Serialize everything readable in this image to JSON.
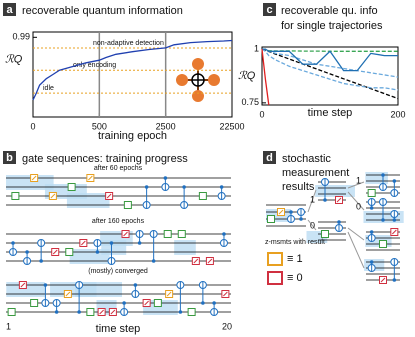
{
  "chart_data": [
    {
      "type": "line",
      "label": "a",
      "title": [
        "recoverable quantum information"
      ],
      "ylabel": "ℛQ",
      "xlabel": "training epoch",
      "xscale": "piecewise",
      "xlim": [
        0,
        22500
      ],
      "xticks": [
        0,
        500,
        2500,
        22500
      ],
      "ylim": [
        0.84,
        1.0
      ],
      "yticks": [
        0.99
      ],
      "x": [
        0,
        25,
        50,
        100,
        150,
        200,
        300,
        400,
        500,
        700,
        1000,
        1500,
        2000,
        2500,
        5000,
        10000,
        15000,
        20000,
        22500
      ],
      "series": [
        {
          "color": "#2040b0",
          "style": "solid",
          "values": [
            0.872,
            0.885,
            0.9,
            0.912,
            0.92,
            0.928,
            0.935,
            0.942,
            0.947,
            0.952,
            0.958,
            0.963,
            0.967,
            0.97,
            0.976,
            0.98,
            0.982,
            0.983,
            0.984
          ]
        }
      ],
      "reference_lines": [
        {
          "name": "non-adaptive detection",
          "value": 0.97
        },
        {
          "name": "only encoding",
          "value": 0.928
        },
        {
          "name": "idle",
          "value": 0.885
        }
      ],
      "reference_color": "#e8a020"
    },
    {
      "type": "line",
      "label": "c",
      "title": [
        "recoverable qu. info",
        "for single trajectories"
      ],
      "ylabel": "ℛQ",
      "xlabel": "time step",
      "xlim": [
        0,
        200
      ],
      "xticks": [
        0,
        200
      ],
      "ylim": [
        0.74,
        1.01
      ],
      "yticks": [
        0.75,
        1
      ],
      "x": [
        0,
        5,
        10,
        20,
        40,
        60,
        80,
        100,
        120,
        140,
        160,
        180,
        200
      ],
      "series": [
        {
          "color": "#3aa655",
          "style": "dashed",
          "values": [
            1,
            0.995,
            0.993,
            0.992,
            0.992,
            0.991,
            0.991,
            0.99,
            0.99,
            0.99,
            0.99,
            0.99,
            0.99
          ]
        },
        {
          "color": "#000000",
          "style": "dashed",
          "values": [
            1,
            0.994,
            0.989,
            0.977,
            0.954,
            0.931,
            0.908,
            0.885,
            0.862,
            0.839,
            0.816,
            0.793,
            0.77
          ]
        },
        {
          "color": "#6aa9dd",
          "style": "dashed",
          "values": [
            1,
            0.99,
            0.97,
            0.95,
            0.92,
            0.9,
            0.88,
            0.86,
            0.84,
            0.83,
            0.82,
            0.82,
            0.81
          ]
        },
        {
          "color": "#6aa9dd",
          "style": "dashed",
          "values": [
            1,
            1,
            0.99,
            0.98,
            0.97,
            0.95,
            0.93,
            0.92,
            0.91,
            0.9,
            0.89,
            0.88,
            0.87
          ]
        },
        {
          "color": "#1f6fb2",
          "style": "solid",
          "values": [
            1,
            1,
            0.99,
            0.99,
            0.99,
            0.93,
            0.93,
            0.99,
            0.9,
            0.9,
            0.98,
            0.97,
            0.97
          ]
        },
        {
          "color": "#e02020",
          "style": "solid",
          "values": [
            1,
            0.86,
            0.74,
            null,
            null,
            null,
            null,
            null,
            null,
            null,
            null,
            null,
            null
          ]
        }
      ]
    }
  ],
  "panel_b": {
    "label": "b",
    "title": "gate sequences: training progress",
    "captions": [
      "after 60 epochs",
      "after 160 epochs",
      "(mostly) converged"
    ],
    "axis_start": "1",
    "axis_end": "20",
    "xlabel": "time step"
  },
  "panel_d": {
    "label": "d",
    "title": [
      "stochastic",
      "measurement",
      "results"
    ],
    "branches": [
      "1",
      "0",
      "1",
      "0"
    ],
    "legend_title": "z-msmts with  result",
    "legend_one": "≡ 1",
    "legend_zero": "≡ 0"
  }
}
